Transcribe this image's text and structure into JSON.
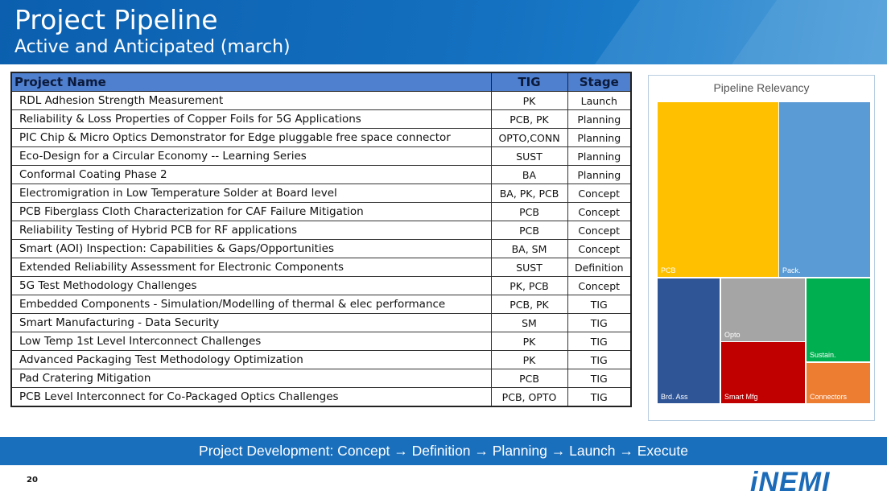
{
  "slide": {
    "title": "Project Pipeline",
    "subtitle": "Active and Anticipated (march)",
    "page_number": "20",
    "footer_text": "Project Development: Concept → Definition → Planning →  Launch → Execute",
    "logo_text": "iNEMI"
  },
  "table": {
    "headers": {
      "name": "Project Name",
      "tig": "TIG",
      "stage": "Stage"
    },
    "rows": [
      {
        "name": "RDL Adhesion Strength Measurement",
        "tig": "PK",
        "stage": "Launch"
      },
      {
        "name": "Reliability & Loss Properties of Copper Foils for 5G Applications",
        "tig": "PCB, PK",
        "stage": "Planning"
      },
      {
        "name": "PIC Chip & Micro Optics Demonstrator for Edge pluggable free space connector",
        "tig": "OPTO,CONN",
        "stage": "Planning"
      },
      {
        "name": "Eco-Design for a Circular Economy -- Learning Series",
        "tig": "SUST",
        "stage": "Planning"
      },
      {
        "name": "Conformal Coating Phase 2",
        "tig": "BA",
        "stage": "Planning"
      },
      {
        "name": "Electromigration in Low Temperature Solder at Board level",
        "tig": "BA, PK, PCB",
        "stage": "Concept"
      },
      {
        "name": "PCB Fiberglass Cloth Characterization for CAF Failure Mitigation",
        "tig": "PCB",
        "stage": "Concept"
      },
      {
        "name": "Reliability Testing of Hybrid PCB for RF applications",
        "tig": "PCB",
        "stage": "Concept"
      },
      {
        "name": "Smart (AOI) Inspection: Capabilities & Gaps/Opportunities",
        "tig": "BA, SM",
        "stage": "Concept"
      },
      {
        "name": "Extended Reliability Assessment for Electronic Components",
        "tig": "SUST",
        "stage": "Definition"
      },
      {
        "name": "5G Test Methodology Challenges",
        "tig": "PK, PCB",
        "stage": "Concept"
      },
      {
        "name": "Embedded Components - Simulation/Modelling of thermal & elec performance",
        "tig": "PCB, PK",
        "stage": "TIG"
      },
      {
        "name": "Smart Manufacturing - Data Security",
        "tig": "SM",
        "stage": "TIG"
      },
      {
        "name": "Low Temp 1st Level Interconnect Challenges",
        "tig": "PK",
        "stage": "TIG"
      },
      {
        "name": "Advanced Packaging Test Methodology Optimization",
        "tig": "PK",
        "stage": "TIG"
      },
      {
        "name": "Pad Cratering Mitigation",
        "tig": "PCB",
        "stage": "TIG"
      },
      {
        "name": "PCB Level Interconnect for Co-Packaged Optics Challenges",
        "tig": "PCB, OPTO",
        "stage": "TIG"
      }
    ]
  },
  "treemap": {
    "title": "Pipeline Relevancy",
    "tiles": [
      {
        "label": "PCB",
        "color": "#ffc000"
      },
      {
        "label": "Pack.",
        "color": "#5b9bd5"
      },
      {
        "label": "Brd. Ass",
        "color": "#2f5597"
      },
      {
        "label": "Opto",
        "color": "#a5a5a5"
      },
      {
        "label": "Smart Mfg",
        "color": "#c00000"
      },
      {
        "label": "Sustain.",
        "color": "#00b050"
      },
      {
        "label": "Connectors",
        "color": "#ed7d31"
      }
    ]
  }
}
